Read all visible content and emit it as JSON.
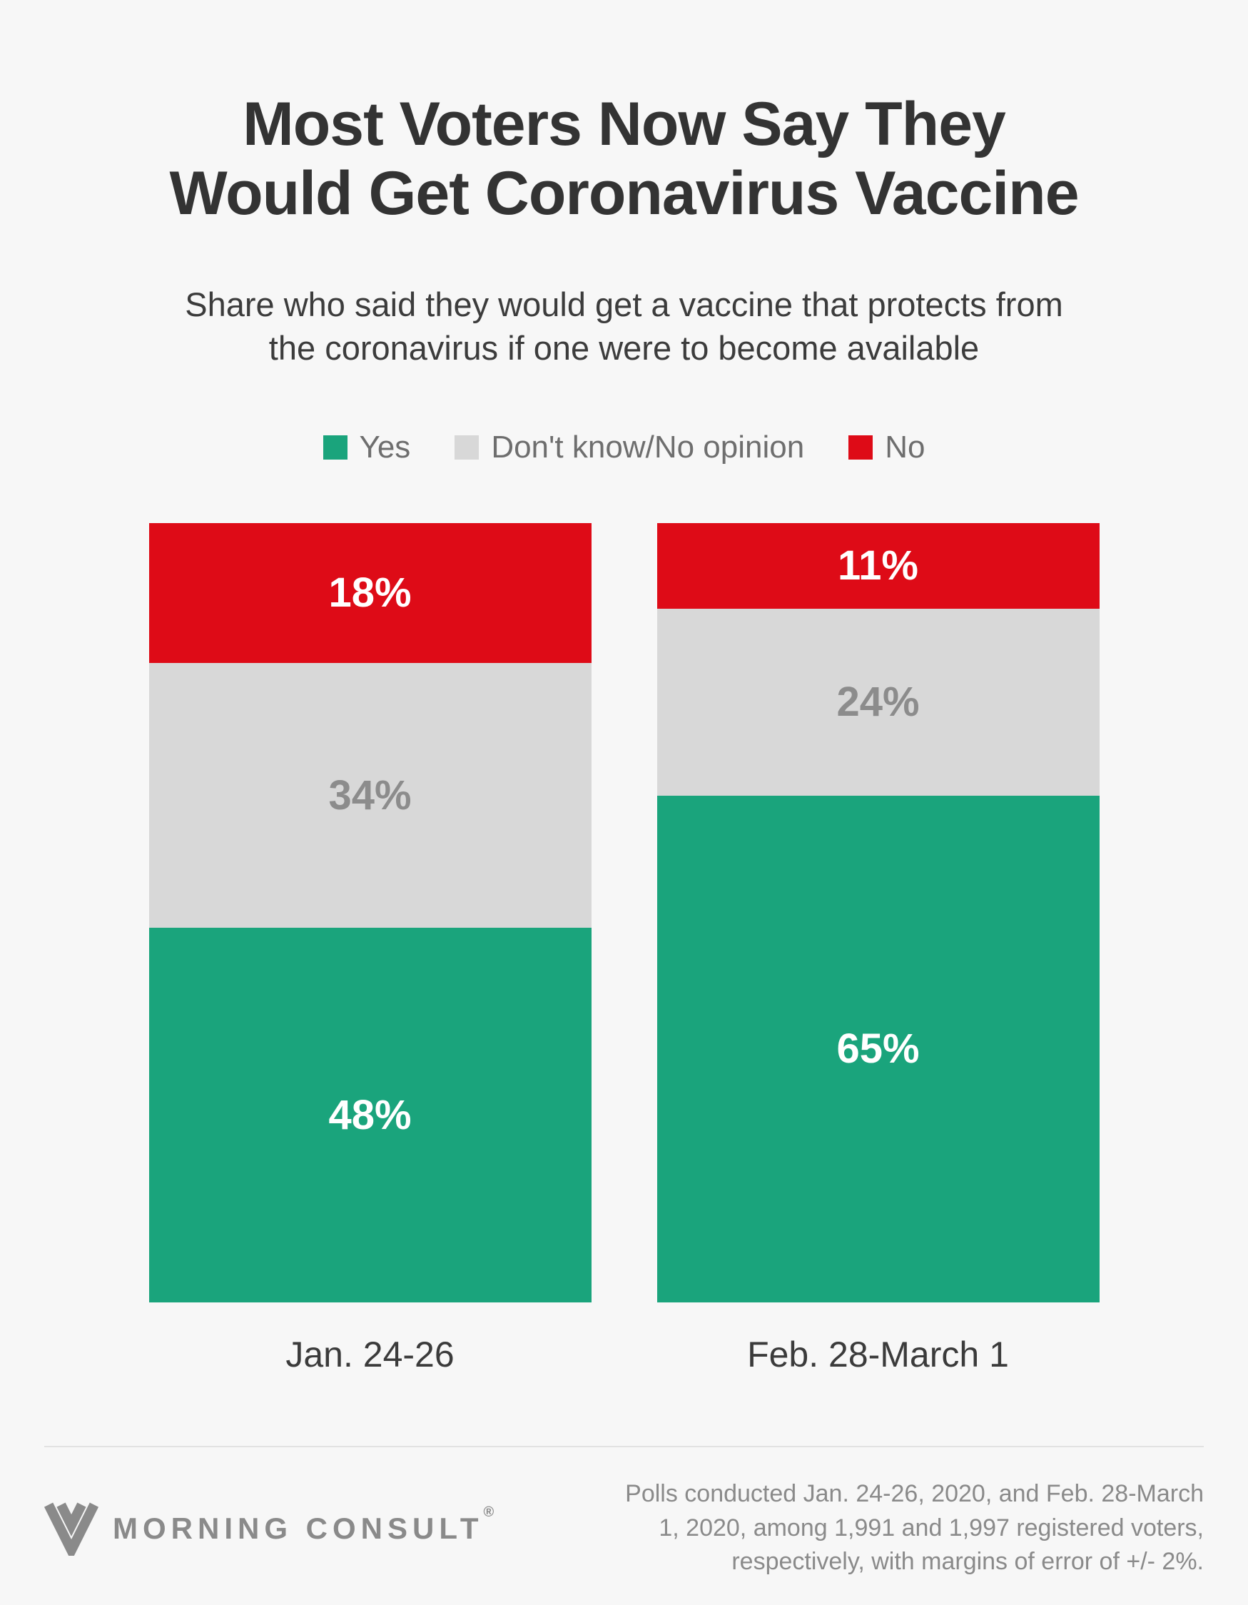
{
  "page": {
    "background_color": "#f7f7f7"
  },
  "header": {
    "title": "Most Voters Now Say They Would Get Coronavirus Vaccine",
    "subtitle": "Share who said they would get a vaccine that protects from the coronavirus if one were to become available"
  },
  "chart_data": {
    "type": "bar",
    "stacked": true,
    "categories": [
      "Jan. 24-26",
      "Feb. 28-March 1"
    ],
    "series": [
      {
        "name": "Yes",
        "color": "#1aa47c",
        "label_color": "#ffffff",
        "values": [
          48,
          65
        ]
      },
      {
        "name": "Don't know/No opinion",
        "color": "#d8d8d8",
        "label_color": "#8c8c8c",
        "values": [
          34,
          24
        ]
      },
      {
        "name": "No",
        "color": "#de0b17",
        "label_color": "#ffffff",
        "values": [
          18,
          11
        ]
      }
    ],
    "value_suffix": "%",
    "ylim": [
      0,
      100
    ],
    "grid": false,
    "legend_position": "top",
    "stack_order_top_to_bottom": [
      "No",
      "Don't know/No opinion",
      "Yes"
    ]
  },
  "footer": {
    "brand": "MORNING CONSULT",
    "registered_mark": "®",
    "source": "Polls conducted Jan. 24-26, 2020, and Feb. 28-March 1, 2020, among 1,991 and 1,997 registered voters, respectively, with margins of error of +/- 2%."
  }
}
